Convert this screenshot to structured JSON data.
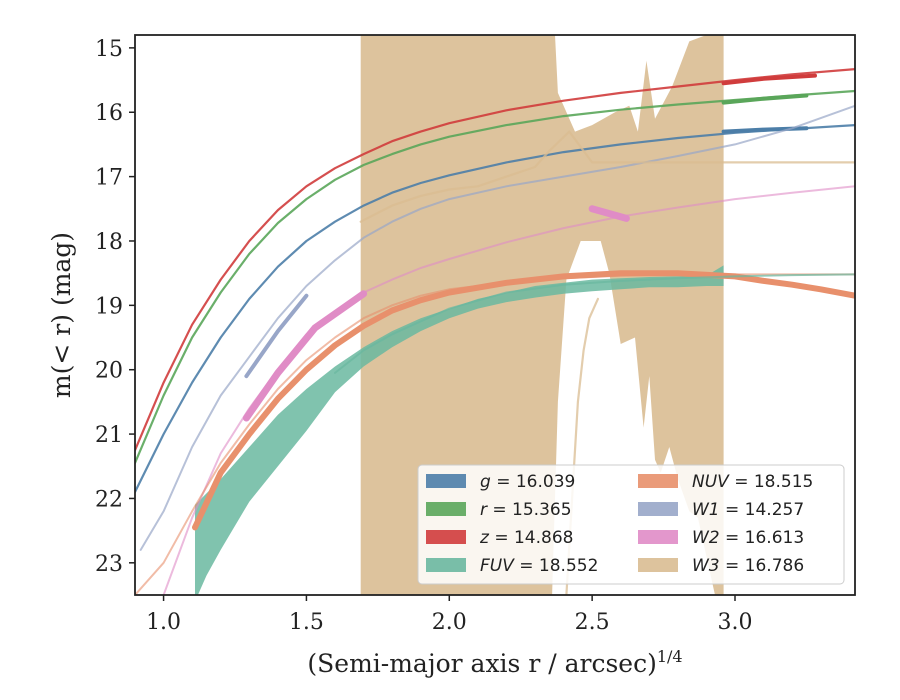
{
  "chart_data": {
    "type": "line",
    "xlim": [
      0.9,
      3.42
    ],
    "ylim": [
      23.5,
      14.8
    ],
    "y_inverted": true,
    "xticks": [
      1.0,
      1.5,
      2.0,
      2.5,
      3.0
    ],
    "xtick_labels": [
      "1.0",
      "1.5",
      "2.0",
      "2.5",
      "3.0"
    ],
    "yticks": [
      15,
      16,
      17,
      18,
      19,
      20,
      21,
      22,
      23
    ],
    "ytick_labels": [
      "15",
      "16",
      "17",
      "18",
      "19",
      "20",
      "21",
      "22",
      "23"
    ],
    "xlabel": "(Semi-major axis r / arcsec)",
    "xlabel_exponent": "1/4",
    "ylabel": "m(< r) (mag)",
    "grid": false,
    "legend_position": "lower-right",
    "colors": {
      "g": "#4c7ea8",
      "r": "#5aa65a",
      "z": "#d03c3c",
      "FUV": "#6ab8a0",
      "NUV": "#e8906c",
      "W1": "#98a6c8",
      "W2": "#e08cc6",
      "W3": "#d9bc92"
    },
    "legend": [
      {
        "key": "g",
        "name": "g",
        "value": "16.039"
      },
      {
        "key": "r",
        "name": "r",
        "value": "15.365"
      },
      {
        "key": "z",
        "name": "z",
        "value": "14.868"
      },
      {
        "key": "FUV",
        "name": "FUV",
        "value": "18.552"
      },
      {
        "key": "NUV",
        "name": "NUV",
        "value": "18.515"
      },
      {
        "key": "W1",
        "name": "W1",
        "value": "14.257"
      },
      {
        "key": "W2",
        "name": "W2",
        "value": "16.613"
      },
      {
        "key": "W3",
        "name": "W3",
        "value": "16.786"
      }
    ],
    "bands": [
      {
        "key": "W3",
        "upper": [
          [
            1.69,
            14.8
          ],
          [
            2.37,
            14.8
          ],
          [
            2.38,
            15.7
          ],
          [
            2.44,
            16.3
          ],
          [
            2.5,
            16.2
          ],
          [
            2.58,
            16.0
          ],
          [
            2.63,
            15.9
          ],
          [
            2.66,
            16.3
          ],
          [
            2.69,
            15.2
          ],
          [
            2.72,
            16.1
          ],
          [
            2.78,
            15.6
          ],
          [
            2.84,
            14.9
          ],
          [
            2.9,
            14.8
          ],
          [
            2.96,
            14.8
          ]
        ],
        "lower": [
          [
            2.96,
            23.5
          ],
          [
            2.93,
            23.5
          ],
          [
            2.9,
            22.9
          ],
          [
            2.87,
            22.3
          ],
          [
            2.84,
            22.2
          ],
          [
            2.8,
            21.7
          ],
          [
            2.77,
            21.2
          ],
          [
            2.74,
            21.6
          ],
          [
            2.72,
            21.4
          ],
          [
            2.7,
            20.1
          ],
          [
            2.68,
            20.9
          ],
          [
            2.65,
            19.5
          ],
          [
            2.6,
            19.6
          ],
          [
            2.56,
            18.5
          ],
          [
            2.53,
            18.0
          ],
          [
            2.46,
            18.0
          ],
          [
            2.41,
            18.6
          ],
          [
            2.38,
            20.5
          ],
          [
            2.36,
            23.5
          ],
          [
            1.69,
            23.5
          ]
        ]
      },
      {
        "key": "FUV",
        "upper": [
          [
            1.11,
            22.1
          ],
          [
            1.2,
            21.7
          ],
          [
            1.3,
            21.2
          ],
          [
            1.4,
            20.7
          ],
          [
            1.5,
            20.3
          ],
          [
            1.6,
            19.95
          ],
          [
            1.7,
            19.65
          ],
          [
            1.8,
            19.4
          ],
          [
            1.9,
            19.2
          ],
          [
            2.0,
            19.05
          ],
          [
            2.1,
            18.9
          ],
          [
            2.2,
            18.8
          ],
          [
            2.3,
            18.7
          ],
          [
            2.4,
            18.65
          ],
          [
            2.5,
            18.6
          ],
          [
            2.6,
            18.58
          ],
          [
            2.7,
            18.56
          ],
          [
            2.8,
            18.55
          ],
          [
            2.9,
            18.54
          ],
          [
            2.96,
            18.38
          ]
        ],
        "lower": [
          [
            2.96,
            18.7
          ],
          [
            2.9,
            18.7
          ],
          [
            2.8,
            18.72
          ],
          [
            2.7,
            18.72
          ],
          [
            2.6,
            18.75
          ],
          [
            2.5,
            18.78
          ],
          [
            2.4,
            18.82
          ],
          [
            2.3,
            18.88
          ],
          [
            2.2,
            18.95
          ],
          [
            2.1,
            19.05
          ],
          [
            2.0,
            19.2
          ],
          [
            1.9,
            19.4
          ],
          [
            1.8,
            19.65
          ],
          [
            1.7,
            19.95
          ],
          [
            1.6,
            20.35
          ],
          [
            1.5,
            20.95
          ],
          [
            1.4,
            21.5
          ],
          [
            1.3,
            22.05
          ],
          [
            1.2,
            22.8
          ],
          [
            1.15,
            23.2
          ],
          [
            1.12,
            23.5
          ],
          [
            1.11,
            23.5
          ]
        ]
      }
    ],
    "series": [
      {
        "key": "g",
        "width": 2.2,
        "opacity": 0.9,
        "points": [
          [
            0.9,
            21.9
          ],
          [
            1.0,
            21.0
          ],
          [
            1.1,
            20.2
          ],
          [
            1.2,
            19.5
          ],
          [
            1.3,
            18.9
          ],
          [
            1.4,
            18.4
          ],
          [
            1.5,
            18.0
          ],
          [
            1.6,
            17.7
          ],
          [
            1.7,
            17.45
          ],
          [
            1.8,
            17.25
          ],
          [
            1.9,
            17.1
          ],
          [
            2.0,
            16.98
          ],
          [
            2.2,
            16.78
          ],
          [
            2.4,
            16.62
          ],
          [
            2.6,
            16.5
          ],
          [
            2.8,
            16.4
          ],
          [
            3.0,
            16.32
          ],
          [
            3.2,
            16.26
          ],
          [
            3.42,
            16.2
          ]
        ]
      },
      {
        "key": "g",
        "width": 4,
        "opacity": 1,
        "points": [
          [
            2.96,
            16.3
          ],
          [
            3.1,
            16.27
          ],
          [
            3.25,
            16.25
          ]
        ]
      },
      {
        "key": "r",
        "width": 2.2,
        "opacity": 0.9,
        "points": [
          [
            0.9,
            21.45
          ],
          [
            1.0,
            20.4
          ],
          [
            1.1,
            19.5
          ],
          [
            1.2,
            18.8
          ],
          [
            1.3,
            18.2
          ],
          [
            1.4,
            17.72
          ],
          [
            1.5,
            17.35
          ],
          [
            1.6,
            17.05
          ],
          [
            1.7,
            16.82
          ],
          [
            1.8,
            16.65
          ],
          [
            1.9,
            16.5
          ],
          [
            2.0,
            16.38
          ],
          [
            2.2,
            16.2
          ],
          [
            2.4,
            16.06
          ],
          [
            2.6,
            15.96
          ],
          [
            2.8,
            15.88
          ],
          [
            3.0,
            15.81
          ],
          [
            3.2,
            15.74
          ],
          [
            3.42,
            15.67
          ]
        ]
      },
      {
        "key": "r",
        "width": 4,
        "opacity": 1,
        "points": [
          [
            2.96,
            15.85
          ],
          [
            3.1,
            15.79
          ],
          [
            3.25,
            15.74
          ]
        ]
      },
      {
        "key": "z",
        "width": 2.2,
        "opacity": 0.9,
        "points": [
          [
            0.9,
            21.25
          ],
          [
            1.0,
            20.2
          ],
          [
            1.1,
            19.3
          ],
          [
            1.2,
            18.6
          ],
          [
            1.3,
            18.0
          ],
          [
            1.4,
            17.52
          ],
          [
            1.5,
            17.15
          ],
          [
            1.6,
            16.87
          ],
          [
            1.7,
            16.65
          ],
          [
            1.8,
            16.45
          ],
          [
            1.9,
            16.3
          ],
          [
            2.0,
            16.17
          ],
          [
            2.2,
            15.97
          ],
          [
            2.4,
            15.82
          ],
          [
            2.6,
            15.7
          ],
          [
            2.8,
            15.6
          ],
          [
            3.0,
            15.5
          ],
          [
            3.2,
            15.41
          ],
          [
            3.42,
            15.33
          ]
        ]
      },
      {
        "key": "z",
        "width": 4,
        "opacity": 1,
        "points": [
          [
            2.96,
            15.55
          ],
          [
            3.1,
            15.48
          ],
          [
            3.28,
            15.43
          ]
        ]
      },
      {
        "key": "W1",
        "width": 2,
        "opacity": 0.7,
        "points": [
          [
            0.92,
            22.8
          ],
          [
            1.0,
            22.2
          ],
          [
            1.1,
            21.2
          ],
          [
            1.2,
            20.4
          ],
          [
            1.3,
            19.8
          ],
          [
            1.4,
            19.2
          ],
          [
            1.5,
            18.7
          ],
          [
            1.6,
            18.3
          ],
          [
            1.7,
            17.95
          ],
          [
            1.8,
            17.7
          ],
          [
            1.9,
            17.5
          ],
          [
            2.0,
            17.35
          ],
          [
            2.2,
            17.15
          ],
          [
            2.4,
            17.0
          ],
          [
            2.6,
            16.85
          ],
          [
            2.8,
            16.68
          ],
          [
            3.0,
            16.5
          ],
          [
            3.2,
            16.25
          ],
          [
            3.42,
            15.9
          ]
        ]
      },
      {
        "key": "W1",
        "width": 4,
        "opacity": 1,
        "points": [
          [
            1.29,
            20.1
          ],
          [
            1.4,
            19.4
          ],
          [
            1.5,
            18.85
          ]
        ]
      },
      {
        "key": "W2",
        "width": 2,
        "opacity": 0.6,
        "points": [
          [
            1.0,
            23.5
          ],
          [
            1.1,
            22.3
          ],
          [
            1.2,
            21.3
          ],
          [
            1.3,
            20.6
          ],
          [
            1.4,
            20.0
          ],
          [
            1.5,
            19.45
          ],
          [
            1.6,
            19.1
          ],
          [
            1.7,
            18.8
          ],
          [
            1.8,
            18.6
          ],
          [
            1.9,
            18.42
          ],
          [
            2.0,
            18.28
          ],
          [
            2.2,
            18.02
          ],
          [
            2.4,
            17.8
          ],
          [
            2.6,
            17.62
          ],
          [
            2.8,
            17.48
          ],
          [
            3.0,
            17.35
          ],
          [
            3.2,
            17.25
          ],
          [
            3.42,
            17.15
          ]
        ]
      },
      {
        "key": "W2",
        "width": 7,
        "opacity": 1,
        "points": [
          [
            1.29,
            20.75
          ],
          [
            1.4,
            20.05
          ],
          [
            1.53,
            19.35
          ],
          [
            1.7,
            18.82
          ]
        ]
      },
      {
        "key": "W2",
        "width": 7,
        "opacity": 1,
        "points": [
          [
            2.5,
            17.5
          ],
          [
            2.62,
            17.65
          ]
        ]
      },
      {
        "key": "W3",
        "width": 2.2,
        "opacity": 0.75,
        "points": [
          [
            1.69,
            17.7
          ],
          [
            1.8,
            17.45
          ],
          [
            1.9,
            17.3
          ],
          [
            2.0,
            17.2
          ],
          [
            2.1,
            17.15
          ],
          [
            2.2,
            17.0
          ],
          [
            2.3,
            16.85
          ],
          [
            2.35,
            16.6
          ],
          [
            2.42,
            16.3
          ],
          [
            2.5,
            16.78
          ],
          [
            2.6,
            16.78
          ],
          [
            3.0,
            16.78
          ],
          [
            3.42,
            16.78
          ]
        ]
      },
      {
        "key": "W3",
        "width": 2.2,
        "opacity": 0.75,
        "points": [
          [
            2.41,
            23.5
          ],
          [
            2.43,
            22.0
          ],
          [
            2.45,
            20.5
          ],
          [
            2.47,
            19.7
          ],
          [
            2.49,
            19.2
          ],
          [
            2.52,
            18.9
          ]
        ]
      },
      {
        "key": "NUV",
        "width": 2,
        "opacity": 0.6,
        "points": [
          [
            0.9,
            23.5
          ],
          [
            1.0,
            23.0
          ],
          [
            1.1,
            22.2
          ],
          [
            1.2,
            21.45
          ],
          [
            1.3,
            20.85
          ],
          [
            1.4,
            20.3
          ],
          [
            1.5,
            19.85
          ],
          [
            1.6,
            19.5
          ],
          [
            1.7,
            19.2
          ],
          [
            1.8,
            19.0
          ],
          [
            1.9,
            18.85
          ],
          [
            2.0,
            18.75
          ],
          [
            2.2,
            18.65
          ],
          [
            2.4,
            18.58
          ],
          [
            2.6,
            18.54
          ],
          [
            2.8,
            18.52
          ],
          [
            3.0,
            18.52
          ],
          [
            3.2,
            18.52
          ],
          [
            3.42,
            18.52
          ]
        ]
      },
      {
        "key": "NUV",
        "width": 6,
        "opacity": 1,
        "points": [
          [
            1.11,
            22.45
          ],
          [
            1.2,
            21.6
          ],
          [
            1.3,
            21.0
          ],
          [
            1.4,
            20.45
          ],
          [
            1.5,
            20.0
          ],
          [
            1.6,
            19.62
          ],
          [
            1.7,
            19.32
          ],
          [
            1.8,
            19.08
          ],
          [
            1.9,
            18.92
          ],
          [
            2.0,
            18.8
          ],
          [
            2.2,
            18.65
          ],
          [
            2.4,
            18.55
          ],
          [
            2.6,
            18.5
          ],
          [
            2.8,
            18.5
          ],
          [
            3.0,
            18.55
          ],
          [
            3.1,
            18.62
          ],
          [
            3.2,
            18.68
          ],
          [
            3.3,
            18.75
          ],
          [
            3.42,
            18.85
          ]
        ]
      },
      {
        "key": "FUV",
        "width": 2,
        "opacity": 0.7,
        "points": [
          [
            1.6,
            20.05
          ],
          [
            1.7,
            19.7
          ],
          [
            1.8,
            19.45
          ],
          [
            1.9,
            19.25
          ],
          [
            2.0,
            19.05
          ],
          [
            2.2,
            18.8
          ],
          [
            2.4,
            18.68
          ],
          [
            2.6,
            18.62
          ],
          [
            2.8,
            18.58
          ],
          [
            3.0,
            18.55
          ],
          [
            3.2,
            18.53
          ],
          [
            3.42,
            18.52
          ]
        ]
      }
    ]
  }
}
